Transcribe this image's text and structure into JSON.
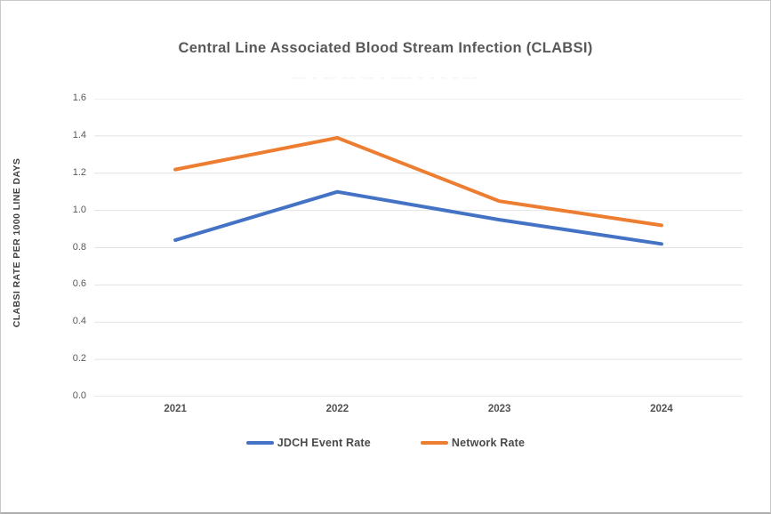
{
  "window": {
    "background": "#ffffff",
    "border_color": "#c8c8c8"
  },
  "chart_data": {
    "type": "line",
    "title": "Central Line Associated Blood Stream Infection (CLABSI)",
    "subtitle_faint_marks": "–– –  –– –– ––  – –––  –  – – – ––",
    "xlabel": "",
    "ylabel": "CLABSI RATE PER 1000 LINE DAYS",
    "categories": [
      "2021",
      "2022",
      "2023",
      "2024"
    ],
    "series": [
      {
        "name": "JDCH Event Rate",
        "color": "#4472C4",
        "values": [
          0.84,
          1.1,
          0.95,
          0.82
        ]
      },
      {
        "name": "Network Rate",
        "color": "#ED7D31",
        "values": [
          1.22,
          1.39,
          1.05,
          0.92
        ]
      }
    ],
    "ylim": [
      0.0,
      1.6
    ],
    "ytick_step": 0.2,
    "ytick_labels": [
      "1.6",
      "1.4",
      "1.2",
      "1.0",
      "0.8",
      "0.6",
      "0.4",
      "0.2",
      "0.0"
    ],
    "grid": true,
    "gridline_color": "#e2e2e2",
    "baseline_color": "#d6d6d6",
    "legend_position": "bottom",
    "text_color": "#595959"
  }
}
